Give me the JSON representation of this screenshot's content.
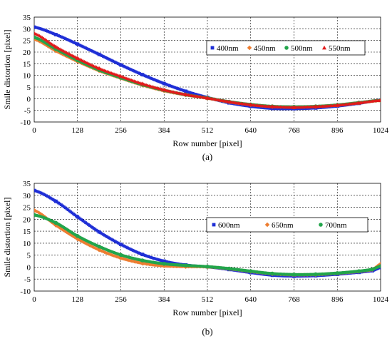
{
  "chart_data": [
    {
      "type": "scatter",
      "panel_label": "(a)",
      "xlabel": "Row number [pixel]",
      "ylabel": "Smile distortion [pixel]",
      "xlim": [
        0,
        1024
      ],
      "ylim": [
        -10,
        35
      ],
      "xticks": [
        0,
        128,
        256,
        384,
        512,
        640,
        768,
        896,
        1024
      ],
      "yticks": [
        -10,
        -5,
        0,
        5,
        10,
        15,
        20,
        25,
        30,
        35
      ],
      "grid": true,
      "legend_position": "upper-right",
      "series": [
        {
          "name": "400nm",
          "color": "#1f2fd6",
          "marker": "square",
          "x": [
            0,
            64,
            128,
            192,
            256,
            320,
            384,
            448,
            512,
            576,
            640,
            704,
            768,
            832,
            896,
            960,
            1024
          ],
          "y": [
            30.7,
            27.5,
            23.4,
            19.0,
            14.5,
            10.3,
            6.5,
            3.2,
            0.5,
            -1.8,
            -3.3,
            -4.2,
            -4.3,
            -4.0,
            -3.2,
            -2.0,
            -0.6
          ]
        },
        {
          "name": "450nm",
          "color": "#ed7d31",
          "marker": "diamond",
          "x": [
            0,
            64,
            128,
            192,
            256,
            320,
            384,
            448,
            512,
            576,
            640,
            704,
            768,
            832,
            896,
            960,
            1024
          ],
          "y": [
            25.5,
            20.5,
            16.0,
            12.0,
            8.8,
            5.8,
            3.4,
            1.6,
            0.2,
            -1.4,
            -2.6,
            -3.4,
            -3.6,
            -3.4,
            -2.8,
            -1.8,
            -0.8
          ]
        },
        {
          "name": "500nm",
          "color": "#22a54b",
          "marker": "circle",
          "x": [
            0,
            64,
            128,
            192,
            256,
            320,
            384,
            448,
            512,
            576,
            640,
            704,
            768,
            832,
            896,
            960,
            1024
          ],
          "y": [
            26.3,
            21.3,
            16.5,
            12.3,
            9.0,
            6.0,
            3.6,
            1.7,
            0.3,
            -1.3,
            -2.5,
            -3.3,
            -3.5,
            -3.3,
            -2.7,
            -1.7,
            -0.7
          ]
        },
        {
          "name": "550nm",
          "color": "#e21b1b",
          "marker": "triangle",
          "x": [
            0,
            64,
            128,
            192,
            256,
            320,
            384,
            448,
            512,
            576,
            640,
            704,
            768,
            832,
            896,
            960,
            1024
          ],
          "y": [
            28.0,
            22.3,
            17.4,
            13.0,
            9.6,
            6.4,
            3.8,
            1.8,
            0.3,
            -1.3,
            -2.6,
            -3.4,
            -3.7,
            -3.4,
            -2.8,
            -1.8,
            -0.7
          ]
        }
      ]
    },
    {
      "type": "scatter",
      "panel_label": "(b)",
      "xlabel": "Row number [pixel]",
      "ylabel": "Smile distortion [pixel]",
      "xlim": [
        0,
        1024
      ],
      "ylim": [
        -10,
        35
      ],
      "xticks": [
        0,
        128,
        256,
        384,
        512,
        640,
        768,
        896,
        1024
      ],
      "yticks": [
        -10,
        -5,
        0,
        5,
        10,
        15,
        20,
        25,
        30,
        35
      ],
      "grid": true,
      "legend_position": "upper-right",
      "series": [
        {
          "name": "600nm",
          "color": "#1f2fd6",
          "marker": "square",
          "x": [
            0,
            64,
            128,
            192,
            256,
            320,
            384,
            448,
            512,
            576,
            640,
            704,
            768,
            832,
            896,
            960,
            1000,
            1024
          ],
          "y": [
            32.0,
            27.5,
            21.0,
            14.7,
            9.5,
            5.3,
            2.5,
            0.9,
            0.1,
            -1.0,
            -2.3,
            -3.4,
            -3.8,
            -3.6,
            -3.0,
            -2.2,
            -1.5,
            -0.2
          ]
        },
        {
          "name": "650nm",
          "color": "#ed7d31",
          "marker": "diamond",
          "x": [
            0,
            64,
            128,
            192,
            256,
            320,
            384,
            448,
            512,
            576,
            640,
            704,
            768,
            832,
            896,
            960,
            1000,
            1024
          ],
          "y": [
            23.7,
            17.5,
            11.8,
            7.2,
            3.8,
            1.6,
            0.5,
            0.2,
            0.1,
            -0.7,
            -1.8,
            -2.8,
            -3.2,
            -3.1,
            -2.6,
            -1.8,
            -1.0,
            1.3
          ]
        },
        {
          "name": "700nm",
          "color": "#22a54b",
          "marker": "circle",
          "x": [
            0,
            64,
            128,
            192,
            256,
            320,
            384,
            448,
            512,
            576,
            640,
            704,
            768,
            832,
            896,
            960,
            1000,
            1024
          ],
          "y": [
            21.8,
            18.5,
            13.0,
            8.6,
            5.1,
            2.8,
            1.4,
            0.7,
            0.2,
            -0.6,
            -1.7,
            -2.7,
            -3.1,
            -3.0,
            -2.5,
            -1.7,
            -0.9,
            0.4
          ]
        }
      ]
    }
  ]
}
